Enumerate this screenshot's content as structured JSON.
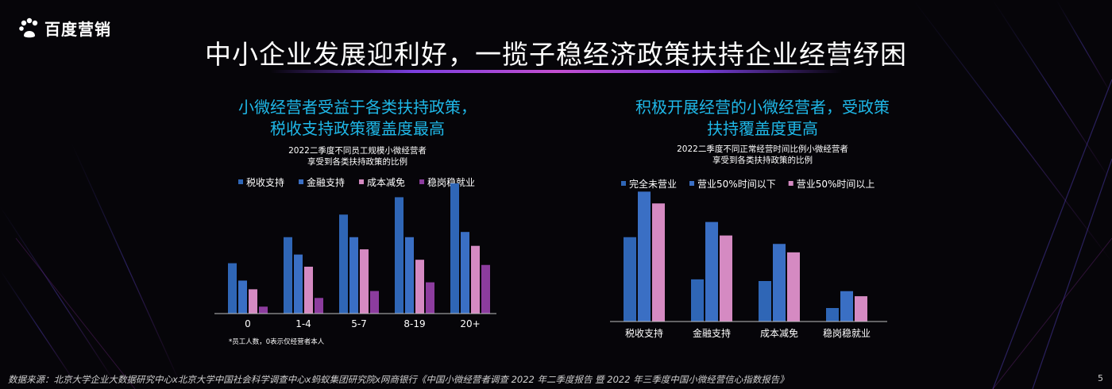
{
  "brand": {
    "name": "百度营销"
  },
  "title": "中小企业发展迎利好，一揽子稳经济政策扶持企业经营纾困",
  "left_section": {
    "heading_line1": "小微经营者受益于各类扶持政策，",
    "heading_line2": "税收支持政策覆盖度最高",
    "chart_subtitle_line1": "2022二季度不同员工规模小微经营者",
    "chart_subtitle_line2": "享受到各类扶持政策的比例",
    "note": "*员工人数，0表示仅经营者本人"
  },
  "right_section": {
    "heading_line1": "积极开展经营的小微经营者，受政策",
    "heading_line2": "扶持覆盖度更高",
    "chart_subtitle_line1": "2022二季度不同正常经营时间比例小微经营者",
    "chart_subtitle_line2": "享受到各类扶持政策的比例"
  },
  "footer": "数据来源：北京大学企业大数据研究中心x北京大学中国社会科学调查中心x蚂蚁集团研究院x网商银行《中国小微经营者调查 2022 年二季度报告 暨 2022 年三季度中国小微经营信心指数报告》",
  "page_number": "5",
  "colors": {
    "accent_title": "#1fb8e8",
    "blue_dark": "#2f66b6",
    "blue_mid": "#3a6fc4",
    "pink": "#d58ac2",
    "purple": "#8c3c9e"
  },
  "chart_data": [
    {
      "type": "bar",
      "categories": [
        "0",
        "1-4",
        "5-7",
        "8-19",
        "20+"
      ],
      "series": [
        {
          "name": "税收支持",
          "color": "#2f66b6",
          "values": [
            29,
            44,
            57,
            67,
            75
          ]
        },
        {
          "name": "金融支持",
          "color": "#3a6fc4",
          "values": [
            19,
            34,
            44,
            44,
            47
          ]
        },
        {
          "name": "成本减免",
          "color": "#d58ac2",
          "values": [
            14,
            27,
            37,
            31,
            39
          ]
        },
        {
          "name": "稳岗稳就业",
          "color": "#8c3c9e",
          "values": [
            4,
            9,
            13,
            18,
            28
          ]
        }
      ],
      "ylim": [
        0,
        80
      ],
      "axis_labels": false,
      "legend": "top"
    },
    {
      "type": "bar",
      "categories": [
        "税收支持",
        "金融支持",
        "成本减免",
        "稳岗稳就业"
      ],
      "series": [
        {
          "name": "完全未营业",
          "color": "#2f66b6",
          "values": [
            50,
            25,
            24,
            8
          ]
        },
        {
          "name": "营业50%时间以下",
          "color": "#3a6fc4",
          "values": [
            77,
            59,
            46,
            18
          ]
        },
        {
          "name": "营业50%时间以上",
          "color": "#d58ac2",
          "values": [
            70,
            51,
            41,
            15
          ]
        }
      ],
      "ylim": [
        0,
        80
      ],
      "axis_labels": false,
      "legend": "top"
    }
  ]
}
